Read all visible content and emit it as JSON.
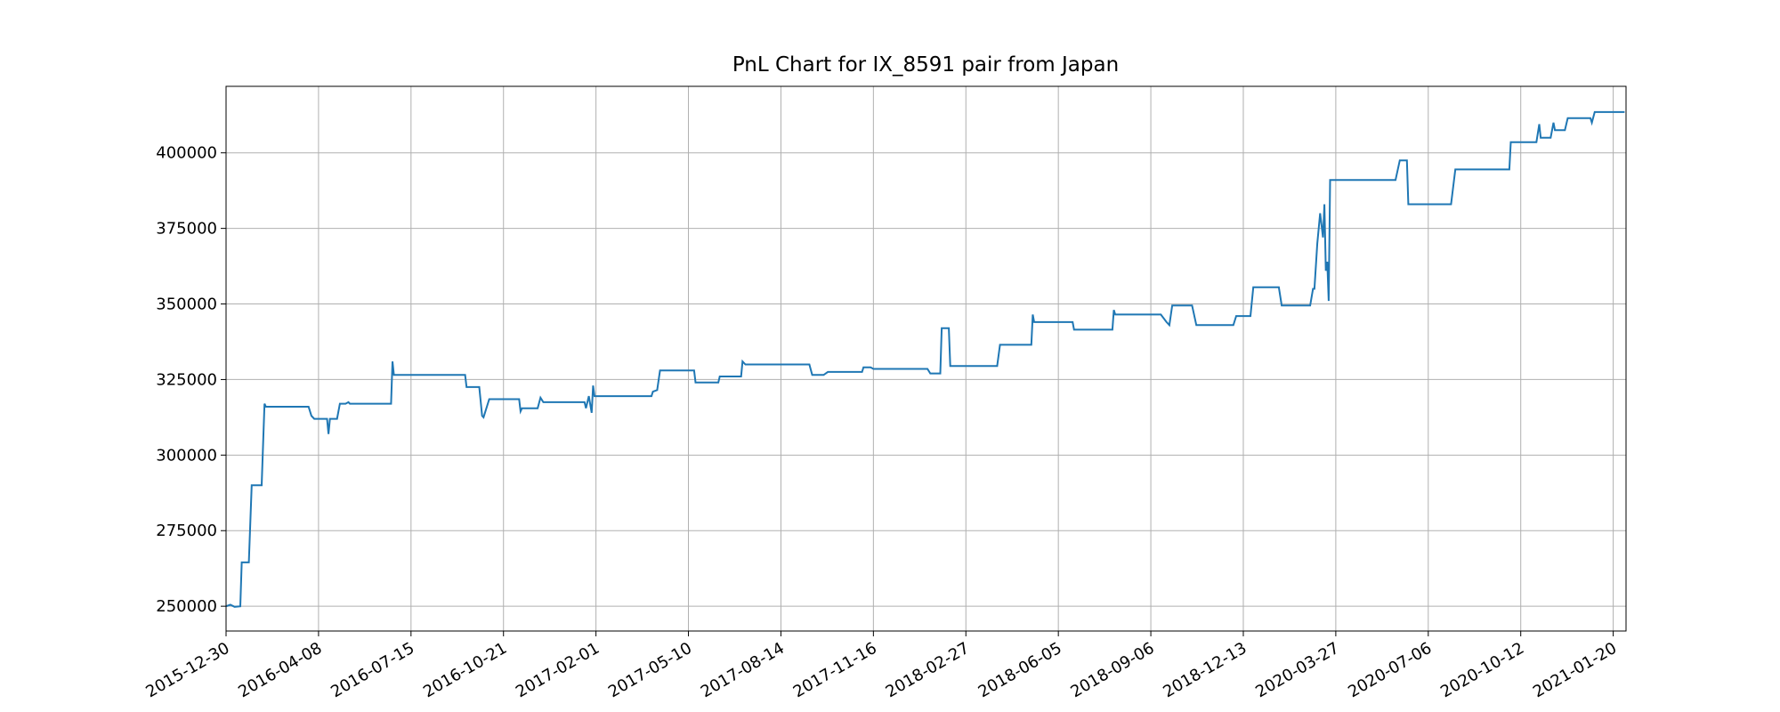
{
  "chart_data": {
    "type": "line",
    "title": "PnL Chart for IX_8591 pair from Japan",
    "x": [
      0,
      3,
      6,
      10,
      11,
      16,
      18,
      25,
      27,
      28,
      58,
      60,
      62,
      71,
      72,
      73,
      78,
      80,
      84,
      86,
      87,
      116,
      117,
      118,
      168,
      169,
      178,
      180,
      181,
      185,
      206,
      207,
      208,
      219,
      221,
      223,
      252,
      253,
      255,
      257,
      258,
      259,
      299,
      300,
      303,
      305,
      329,
      330,
      346,
      347,
      362,
      363,
      365,
      410,
      412,
      420,
      423,
      447,
      448,
      453,
      455,
      493,
      495,
      502,
      503,
      508,
      509,
      542,
      544,
      566,
      567,
      568,
      595,
      596,
      623,
      624,
      625,
      657,
      661,
      663,
      665,
      679,
      682,
      708,
      710,
      720,
      722,
      740,
      742,
      762,
      764,
      765,
      767,
      769,
      771,
      772,
      773,
      774,
      775,
      776,
      822,
      825,
      830,
      831,
      861,
      864,
      902,
      903,
      921,
      923,
      924,
      931,
      933,
      934,
      941,
      943,
      959,
      960,
      962,
      983
    ],
    "series": [
      {
        "name": "PnL",
        "color": "#1f77b4",
        "values": [
          250000,
          250500,
          249800,
          250000,
          264500,
          264500,
          290000,
          290000,
          317000,
          316000,
          316000,
          313000,
          312000,
          312000,
          307000,
          312000,
          312000,
          317000,
          317000,
          317500,
          317000,
          317000,
          331000,
          326500,
          326500,
          322500,
          322500,
          313000,
          312500,
          318500,
          318500,
          314500,
          315500,
          315500,
          319000,
          317500,
          317500,
          315500,
          319500,
          314000,
          323000,
          319500,
          319500,
          321000,
          321500,
          328000,
          328000,
          324000,
          324000,
          326000,
          326000,
          331000,
          330000,
          330000,
          326500,
          326500,
          327500,
          327500,
          329000,
          329000,
          328500,
          328500,
          327000,
          327000,
          342000,
          342000,
          329500,
          329500,
          336500,
          336500,
          346500,
          344000,
          344000,
          341500,
          341500,
          348000,
          346500,
          346500,
          344000,
          343000,
          349500,
          349500,
          343000,
          343000,
          346000,
          346000,
          355500,
          355500,
          349500,
          349500,
          355000,
          355000,
          370000,
          380000,
          372000,
          383000,
          361000,
          364000,
          351000,
          391000,
          391000,
          397500,
          397500,
          383000,
          383000,
          394500,
          394500,
          403500,
          403500,
          409500,
          405000,
          405000,
          410000,
          407500,
          407500,
          411500,
          411500,
          410000,
          413500,
          413500
        ]
      }
    ],
    "xlim": [
      0,
      984
    ],
    "xticks": [
      {
        "value": 0,
        "label": "2015-12-30"
      },
      {
        "value": 65,
        "label": "2016-04-08"
      },
      {
        "value": 130,
        "label": "2016-07-15"
      },
      {
        "value": 195,
        "label": "2016-10-21"
      },
      {
        "value": 260,
        "label": "2017-02-01"
      },
      {
        "value": 325,
        "label": "2017-05-10"
      },
      {
        "value": 390,
        "label": "2017-08-14"
      },
      {
        "value": 455,
        "label": "2017-11-16"
      },
      {
        "value": 520,
        "label": "2018-02-27"
      },
      {
        "value": 585,
        "label": "2018-06-05"
      },
      {
        "value": 650,
        "label": "2018-09-06"
      },
      {
        "value": 715,
        "label": "2018-12-13"
      },
      {
        "value": 780,
        "label": "2020-03-27"
      },
      {
        "value": 845,
        "label": "2020-07-06"
      },
      {
        "value": 910,
        "label": "2020-10-12"
      },
      {
        "value": 975,
        "label": "2021-01-20"
      }
    ],
    "ylim": [
      241800,
      422000
    ],
    "yticks": [
      250000,
      275000,
      300000,
      325000,
      350000,
      375000,
      400000
    ],
    "grid": true
  }
}
